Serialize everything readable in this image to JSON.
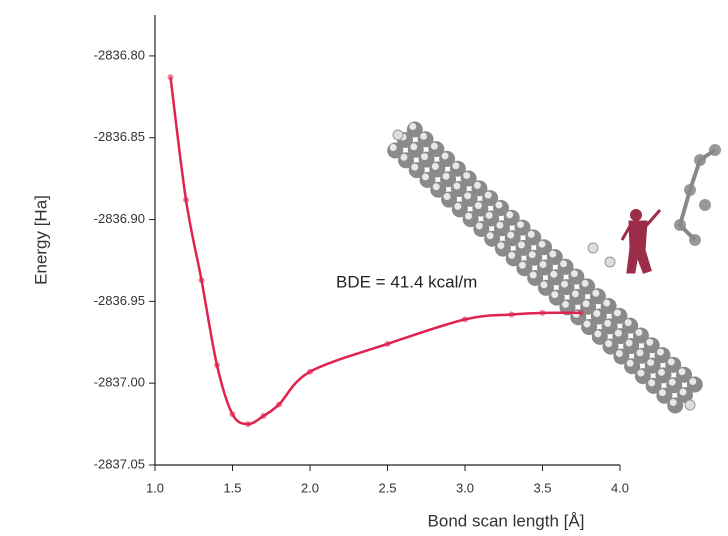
{
  "chart_data": {
    "type": "line",
    "x_label": "Bond scan length [Å]",
    "y_label": "Energy [Ha]",
    "annotation": "BDE = 41.4 kcal/m",
    "xlim": [
      1.0,
      4.0
    ],
    "xticks": [
      {
        "value": 1.0,
        "label": "1.0"
      },
      1.5,
      {
        "value": 2.0,
        "label": "2.0"
      },
      2.5,
      {
        "value": 3.0,
        "label": "3.0"
      },
      3.5,
      {
        "value": 4.0,
        "label": "4.0"
      }
    ],
    "ylim": [
      -2837.05,
      -2836.775
    ],
    "yticks": [
      {
        "value": -2836.8,
        "label": "-2836.80"
      },
      -2836.85,
      {
        "value": -2836.9,
        "label": "-2836.90"
      },
      -2836.95,
      {
        "value": -2837.0,
        "label": "-2837.00"
      },
      -2837.05
    ],
    "series": [
      {
        "color": "#e0224f",
        "x": [
          1.1,
          1.2,
          1.3,
          1.4,
          1.5,
          1.6,
          1.7,
          1.8,
          2.0,
          2.5,
          3.0,
          3.3,
          3.5,
          3.75
        ],
        "values": [
          -2836.813,
          -2836.888,
          -2836.937,
          -2836.989,
          -2837.019,
          -2837.025,
          -2837.02,
          -2837.013,
          -2836.993,
          -2836.976,
          -2836.961,
          -2836.958,
          -2836.957,
          -2836.957
        ]
      }
    ]
  }
}
